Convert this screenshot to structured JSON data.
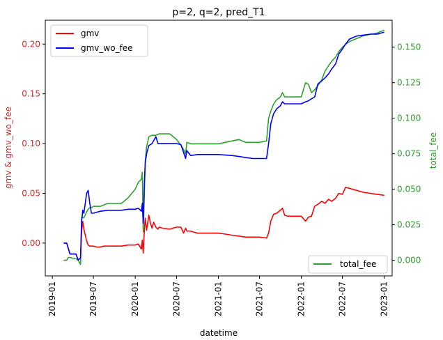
{
  "chart_data": {
    "type": "line",
    "title": "p=2, q=2, pred_T1",
    "xlabel": "datetime",
    "ylabel_left": "gmv & gmv_wo_fee",
    "ylabel_right": "total_fee",
    "xlim": [
      "2018-12-01",
      "2023-02-05"
    ],
    "ylim_left": [
      -0.033,
      0.224
    ],
    "ylim_right": [
      -0.011,
      0.169
    ],
    "x_ticks": [
      "2019-01",
      "2019-07",
      "2020-01",
      "2020-07",
      "2021-01",
      "2021-07",
      "2022-01",
      "2022-07",
      "2023-01"
    ],
    "y_ticks_left": [
      "0.00",
      "0.05",
      "0.10",
      "0.15",
      "0.20"
    ],
    "y_ticks_right": [
      "0.000",
      "0.025",
      "0.050",
      "0.075",
      "0.100",
      "0.125",
      "0.150"
    ],
    "legend_left": {
      "placement": "upper-left",
      "entries": [
        "gmv",
        "gmv_wo_fee"
      ]
    },
    "legend_right": {
      "placement": "lower-right",
      "entries": [
        "total_fee"
      ]
    },
    "colors": {
      "gmv": "#ff0000",
      "gmv_wo_fee": "#0000ff",
      "total_fee": "#2ca02c",
      "left_axis_label": "#d62728",
      "right_axis_label": "#2ca02c"
    },
    "series": [
      {
        "name": "gmv",
        "axis": "left",
        "x": [
          "2019-02-20",
          "2019-03-05",
          "2019-03-12",
          "2019-03-20",
          "2019-04-15",
          "2019-04-25",
          "2019-05-05",
          "2019-05-10",
          "2019-05-15",
          "2019-05-20",
          "2019-06-01",
          "2019-06-08",
          "2019-06-15",
          "2019-06-22",
          "2019-07-01",
          "2019-07-15",
          "2019-08-01",
          "2019-08-15",
          "2019-09-01",
          "2019-10-01",
          "2019-11-01",
          "2019-12-01",
          "2020-01-01",
          "2020-01-15",
          "2020-01-28",
          "2020-02-01",
          "2020-02-05",
          "2020-02-10",
          "2020-02-14",
          "2020-02-20",
          "2020-03-01",
          "2020-03-08",
          "2020-03-15",
          "2020-03-22",
          "2020-04-01",
          "2020-04-10",
          "2020-04-15",
          "2020-05-01",
          "2020-06-01",
          "2020-06-15",
          "2020-07-01",
          "2020-07-20",
          "2020-08-01",
          "2020-08-10",
          "2020-08-15",
          "2020-09-01",
          "2020-09-15",
          "2020-10-01",
          "2021-01-01",
          "2021-02-01",
          "2021-03-01",
          "2021-04-01",
          "2021-05-01",
          "2021-06-01",
          "2021-07-01",
          "2021-08-01",
          "2021-08-10",
          "2021-08-20",
          "2021-09-01",
          "2021-09-15",
          "2021-10-01",
          "2021-10-10",
          "2021-10-20",
          "2021-11-01",
          "2022-01-01",
          "2022-01-20",
          "2022-02-01",
          "2022-02-15",
          "2022-03-01",
          "2022-03-15",
          "2022-04-01",
          "2022-04-15",
          "2022-05-01",
          "2022-05-15",
          "2022-06-01",
          "2022-06-15",
          "2022-07-01",
          "2022-07-15",
          "2022-08-01",
          "2022-09-01",
          "2022-10-01",
          "2022-11-01",
          "2022-12-01",
          "2023-01-01"
        ],
        "values": [
          0.0,
          0.0,
          -0.005,
          -0.011,
          -0.011,
          -0.017,
          -0.015,
          0.012,
          0.022,
          0.014,
          0.002,
          -0.002,
          -0.003,
          -0.003,
          -0.003,
          -0.004,
          -0.004,
          -0.003,
          -0.003,
          -0.003,
          -0.003,
          -0.002,
          -0.002,
          -0.001,
          -0.006,
          0.003,
          -0.01,
          0.012,
          0.025,
          0.013,
          0.028,
          0.02,
          0.015,
          0.021,
          0.016,
          0.014,
          0.016,
          0.015,
          0.014,
          0.015,
          0.016,
          0.016,
          0.01,
          0.015,
          0.012,
          0.012,
          0.011,
          0.01,
          0.01,
          0.009,
          0.008,
          0.007,
          0.006,
          0.006,
          0.006,
          0.005,
          0.01,
          0.022,
          0.029,
          0.03,
          0.033,
          0.035,
          0.028,
          0.027,
          0.027,
          0.022,
          0.026,
          0.027,
          0.037,
          0.039,
          0.042,
          0.04,
          0.044,
          0.042,
          0.045,
          0.05,
          0.049,
          0.056,
          0.055,
          0.053,
          0.051,
          0.05,
          0.049,
          0.048
        ]
      },
      {
        "name": "gmv_wo_fee",
        "axis": "left",
        "x": [
          "2019-02-20",
          "2019-03-05",
          "2019-03-12",
          "2019-03-20",
          "2019-04-15",
          "2019-04-25",
          "2019-05-05",
          "2019-05-10",
          "2019-05-15",
          "2019-05-20",
          "2019-06-01",
          "2019-06-08",
          "2019-06-15",
          "2019-06-22",
          "2019-07-01",
          "2019-07-15",
          "2019-08-01",
          "2019-09-01",
          "2019-10-01",
          "2019-11-01",
          "2019-12-01",
          "2020-01-01",
          "2020-01-15",
          "2020-01-28",
          "2020-02-01",
          "2020-02-05",
          "2020-02-10",
          "2020-02-14",
          "2020-02-20",
          "2020-03-01",
          "2020-03-15",
          "2020-04-01",
          "2020-04-10",
          "2020-04-15",
          "2020-05-01",
          "2020-06-01",
          "2020-06-15",
          "2020-07-01",
          "2020-07-20",
          "2020-08-01",
          "2020-08-10",
          "2020-08-15",
          "2020-09-01",
          "2020-10-01",
          "2021-01-01",
          "2021-03-01",
          "2021-04-01",
          "2021-05-01",
          "2021-06-01",
          "2021-07-01",
          "2021-08-01",
          "2021-08-10",
          "2021-08-20",
          "2021-09-01",
          "2021-09-15",
          "2021-10-01",
          "2021-10-10",
          "2021-10-20",
          "2021-11-01",
          "2022-01-01",
          "2022-01-20",
          "2022-02-01",
          "2022-02-15",
          "2022-03-01",
          "2022-03-15",
          "2022-04-01",
          "2022-04-15",
          "2022-05-01",
          "2022-05-15",
          "2022-06-01",
          "2022-06-15",
          "2022-07-01",
          "2022-07-15",
          "2022-08-01",
          "2022-09-01",
          "2022-10-01",
          "2022-11-01",
          "2022-12-01",
          "2023-01-01"
        ],
        "values": [
          0.0,
          0.0,
          -0.005,
          -0.011,
          -0.011,
          -0.017,
          -0.015,
          0.022,
          0.033,
          0.03,
          0.05,
          0.053,
          0.04,
          0.03,
          0.03,
          0.031,
          0.032,
          0.033,
          0.033,
          0.033,
          0.034,
          0.034,
          0.035,
          0.032,
          0.04,
          0.02,
          0.06,
          0.08,
          0.09,
          0.098,
          0.1,
          0.107,
          0.1,
          0.1,
          0.1,
          0.1,
          0.1,
          0.1,
          0.099,
          0.091,
          0.085,
          0.093,
          0.088,
          0.089,
          0.089,
          0.088,
          0.087,
          0.086,
          0.085,
          0.085,
          0.085,
          0.1,
          0.12,
          0.13,
          0.135,
          0.138,
          0.142,
          0.14,
          0.14,
          0.14,
          0.142,
          0.143,
          0.145,
          0.147,
          0.16,
          0.163,
          0.166,
          0.17,
          0.175,
          0.18,
          0.19,
          0.195,
          0.2,
          0.205,
          0.208,
          0.209,
          0.21,
          0.21,
          0.212
        ]
      },
      {
        "name": "total_fee",
        "axis": "right",
        "x": [
          "2019-02-20",
          "2019-03-05",
          "2019-03-12",
          "2019-03-20",
          "2019-04-15",
          "2019-04-25",
          "2019-05-05",
          "2019-05-10",
          "2019-05-15",
          "2019-05-20",
          "2019-06-01",
          "2019-06-08",
          "2019-06-15",
          "2019-06-22",
          "2019-07-01",
          "2019-08-01",
          "2019-09-01",
          "2019-10-01",
          "2019-11-01",
          "2019-12-01",
          "2020-01-01",
          "2020-01-15",
          "2020-01-28",
          "2020-02-01",
          "2020-02-05",
          "2020-02-10",
          "2020-02-14",
          "2020-02-20",
          "2020-03-01",
          "2020-03-15",
          "2020-04-01",
          "2020-04-15",
          "2020-05-01",
          "2020-06-01",
          "2020-07-01",
          "2020-07-20",
          "2020-08-01",
          "2020-08-10",
          "2020-08-15",
          "2020-09-01",
          "2020-10-01",
          "2021-01-01",
          "2021-02-01",
          "2021-03-01",
          "2021-04-01",
          "2021-05-01",
          "2021-06-01",
          "2021-07-01",
          "2021-08-01",
          "2021-08-10",
          "2021-08-20",
          "2021-09-01",
          "2021-09-15",
          "2021-10-01",
          "2021-10-10",
          "2021-10-20",
          "2021-11-01",
          "2022-01-01",
          "2022-01-20",
          "2022-02-01",
          "2022-02-15",
          "2022-03-01",
          "2022-03-15",
          "2022-04-01",
          "2022-04-15",
          "2022-05-01",
          "2022-05-15",
          "2022-06-01",
          "2022-06-15",
          "2022-07-01",
          "2022-07-15",
          "2022-08-01",
          "2022-09-01",
          "2022-10-01",
          "2022-11-01",
          "2022-12-01",
          "2023-01-01"
        ],
        "values": [
          0.0,
          0.0,
          0.002,
          0.002,
          0.001,
          0.0,
          -0.003,
          0.03,
          0.03,
          0.03,
          0.034,
          0.036,
          0.037,
          0.037,
          0.038,
          0.038,
          0.04,
          0.04,
          0.04,
          0.044,
          0.05,
          0.055,
          0.057,
          0.062,
          0.02,
          0.045,
          0.07,
          0.08,
          0.087,
          0.088,
          0.088,
          0.089,
          0.089,
          0.089,
          0.085,
          0.081,
          0.078,
          0.075,
          0.083,
          0.082,
          0.082,
          0.082,
          0.083,
          0.084,
          0.085,
          0.083,
          0.083,
          0.083,
          0.084,
          0.1,
          0.105,
          0.11,
          0.113,
          0.115,
          0.118,
          0.115,
          0.115,
          0.115,
          0.125,
          0.124,
          0.118,
          0.12,
          0.123,
          0.127,
          0.133,
          0.137,
          0.14,
          0.143,
          0.147,
          0.15,
          0.152,
          0.154,
          0.156,
          0.158,
          0.159,
          0.16,
          0.162
        ]
      }
    ]
  }
}
